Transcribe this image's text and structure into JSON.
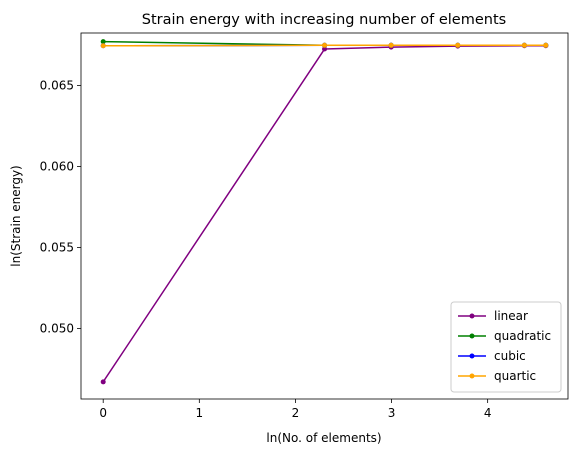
{
  "chart_data": {
    "type": "line",
    "title": "Strain energy with increasing number of elements",
    "xlabel": "ln(No. of elements)",
    "ylabel": "ln(Strain energy)",
    "xlim": [
      -0.231,
      4.836
    ],
    "ylim": [
      0.04564,
      0.06824
    ],
    "xticks": [
      0,
      1,
      2,
      3,
      4
    ],
    "xtick_labels": [
      "0",
      "1",
      "2",
      "3",
      "4"
    ],
    "yticks": [
      0.05,
      0.055,
      0.06,
      0.065
    ],
    "ytick_labels": [
      "0.050",
      "0.055",
      "0.060",
      "0.065"
    ],
    "grid": false,
    "legend_position": "lower-right",
    "series": [
      {
        "name": "linear",
        "color": "#800080",
        "x": [
          0,
          2.303,
          2.996,
          3.689,
          4.382,
          4.605
        ],
        "y": [
          0.0467,
          0.06725,
          0.06737,
          0.06743,
          0.06745,
          0.06745
        ]
      },
      {
        "name": "quadratic",
        "color": "#008000",
        "x": [
          0,
          2.303,
          2.996,
          3.689,
          4.382,
          4.605
        ],
        "y": [
          0.06771,
          0.06748,
          0.06748,
          0.06748,
          0.06748,
          0.06748
        ]
      },
      {
        "name": "cubic",
        "color": "#0000ff",
        "x": [
          0,
          2.303,
          2.996,
          3.689,
          4.382,
          4.605
        ],
        "y": [
          0.06745,
          0.06748,
          0.06748,
          0.06748,
          0.06748,
          0.06748
        ]
      },
      {
        "name": "quartic",
        "color": "#ffa500",
        "x": [
          0,
          2.303,
          2.996,
          3.689,
          4.382,
          4.605
        ],
        "y": [
          0.06745,
          0.06748,
          0.06748,
          0.06748,
          0.06748,
          0.06748
        ]
      }
    ]
  }
}
